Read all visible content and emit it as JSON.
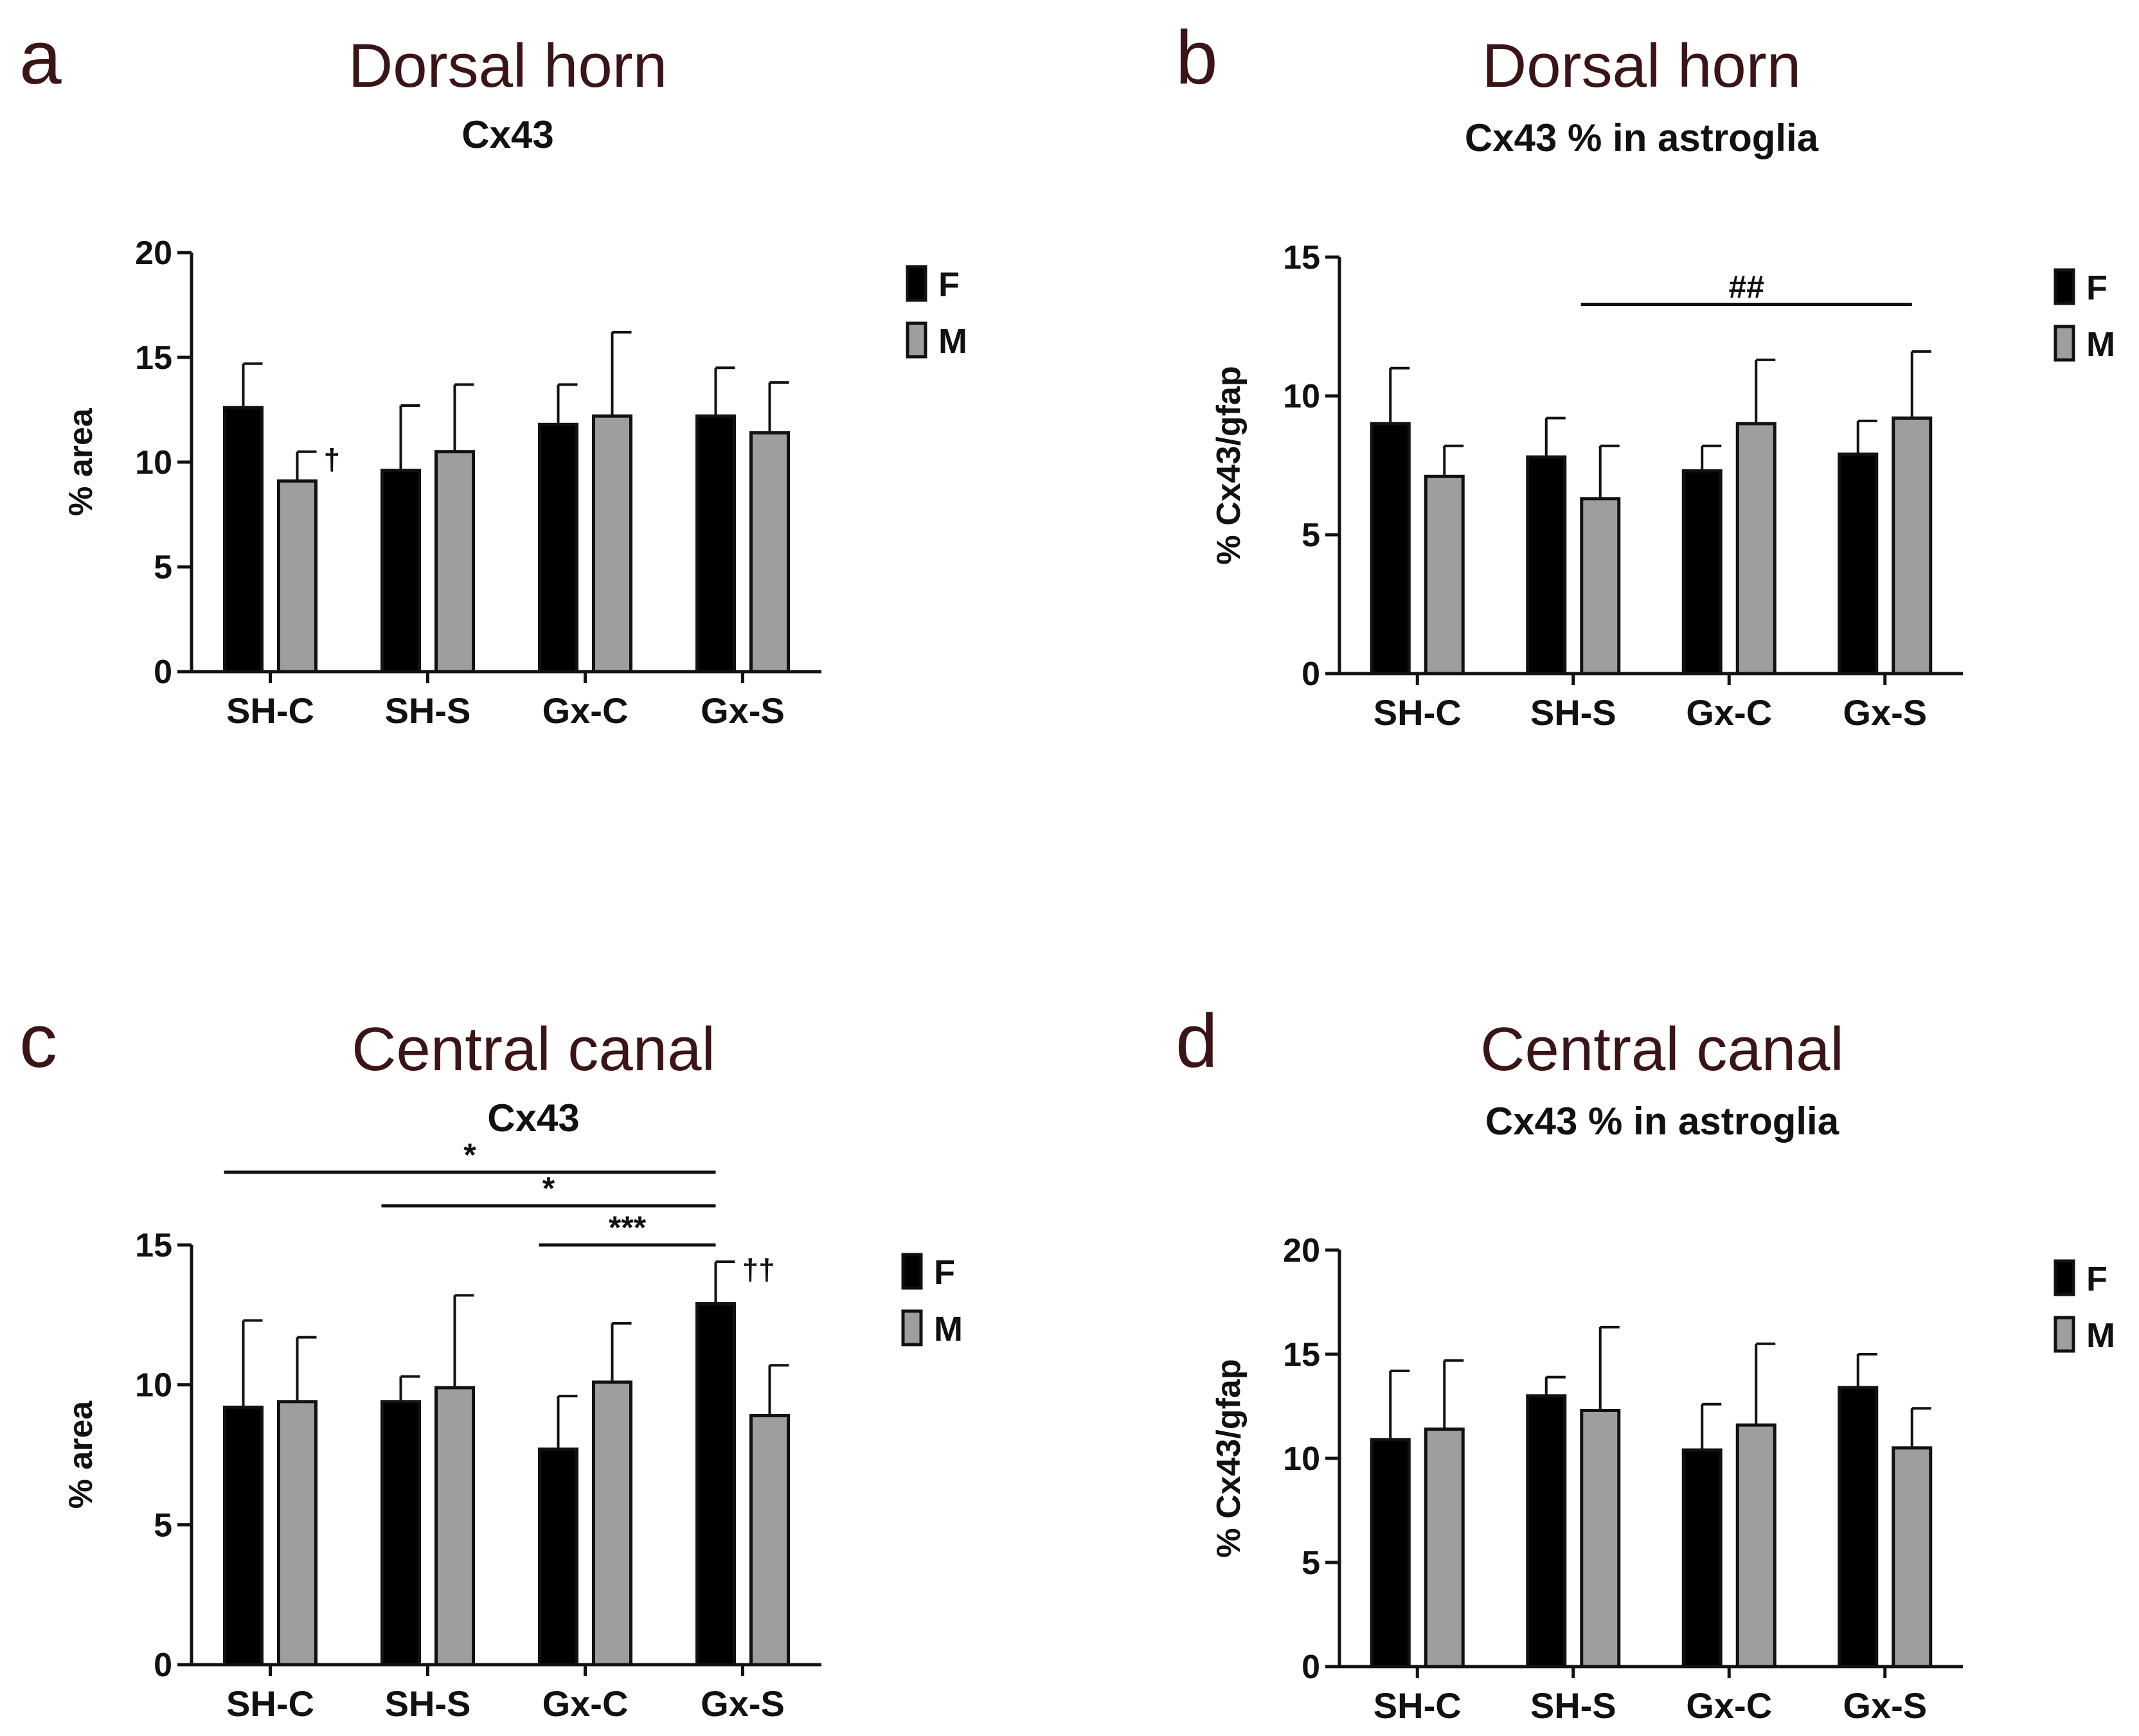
{
  "chart_data": [
    {
      "panel": "a",
      "type": "bar",
      "title": "Dorsal horn",
      "subtitle": "Cx43",
      "ylabel": "% area",
      "xlabel": "",
      "ylim": [
        0,
        20
      ],
      "yticks": [
        0,
        5,
        10,
        15,
        20
      ],
      "categories": [
        "SH-C",
        "SH-S",
        "Gx-C",
        "Gx-S"
      ],
      "series": [
        {
          "name": "F",
          "color": "#000000",
          "values": [
            12.6,
            9.6,
            11.8,
            12.2
          ],
          "errors": [
            2.1,
            3.1,
            1.9,
            2.3
          ]
        },
        {
          "name": "M",
          "color": "#9e9e9e",
          "values": [
            9.1,
            10.5,
            12.2,
            11.4
          ],
          "errors": [
            1.4,
            3.2,
            4.0,
            2.4
          ]
        }
      ],
      "marks": [
        {
          "series": 1,
          "category": 0,
          "text": "†"
        }
      ],
      "significance": []
    },
    {
      "panel": "b",
      "type": "bar",
      "title": "Dorsal horn",
      "subtitle": "Cx43 % in astroglia",
      "ylabel": "% Cx43/gfap",
      "xlabel": "",
      "ylim": [
        0,
        15
      ],
      "yticks": [
        0,
        5,
        10,
        15
      ],
      "categories": [
        "SH-C",
        "SH-S",
        "Gx-C",
        "Gx-S"
      ],
      "series": [
        {
          "name": "F",
          "color": "#000000",
          "values": [
            9.0,
            7.8,
            7.3,
            7.9
          ],
          "errors": [
            2.0,
            1.4,
            0.9,
            1.2
          ]
        },
        {
          "name": "M",
          "color": "#9e9e9e",
          "values": [
            7.1,
            6.3,
            9.0,
            9.2
          ],
          "errors": [
            1.1,
            1.9,
            2.3,
            2.4
          ]
        }
      ],
      "marks": [],
      "significance": [
        {
          "from": [
            1,
            1
          ],
          "to": [
            3,
            1
          ],
          "y": 13.3,
          "label": "##"
        }
      ]
    },
    {
      "panel": "c",
      "type": "bar",
      "title": "Central canal",
      "subtitle": "Cx43",
      "ylabel": "% area",
      "xlabel": "",
      "ylim": [
        0,
        15
      ],
      "yticks": [
        0,
        5,
        10,
        15
      ],
      "categories": [
        "SH-C",
        "SH-S",
        "Gx-C",
        "Gx-S"
      ],
      "series": [
        {
          "name": "F",
          "color": "#000000",
          "values": [
            9.2,
            9.4,
            7.7,
            12.9
          ],
          "errors": [
            3.1,
            0.9,
            1.9,
            1.5
          ]
        },
        {
          "name": "M",
          "color": "#9e9e9e",
          "values": [
            9.4,
            9.9,
            10.1,
            8.9
          ],
          "errors": [
            2.3,
            3.3,
            2.1,
            1.8
          ]
        }
      ],
      "marks": [
        {
          "series": 0,
          "category": 3,
          "text": "††"
        }
      ],
      "significance": [
        {
          "from": [
            0,
            0
          ],
          "to": [
            3,
            0
          ],
          "y": 17.6,
          "label": "*"
        },
        {
          "from": [
            1,
            0
          ],
          "to": [
            3,
            0
          ],
          "y": 16.4,
          "label": "*"
        },
        {
          "from": [
            2,
            0
          ],
          "to": [
            3,
            0
          ],
          "y": 15.0,
          "label": "***"
        }
      ]
    },
    {
      "panel": "d",
      "type": "bar",
      "title": "Central canal",
      "subtitle": "Cx43 % in astroglia",
      "ylabel": "% Cx43/gfap",
      "xlabel": "",
      "ylim": [
        0,
        20
      ],
      "yticks": [
        0,
        5,
        10,
        15,
        20
      ],
      "categories": [
        "SH-C",
        "SH-S",
        "Gx-C",
        "Gx-S"
      ],
      "series": [
        {
          "name": "F",
          "color": "#000000",
          "values": [
            10.9,
            13.0,
            10.4,
            13.4
          ],
          "errors": [
            3.3,
            0.9,
            2.2,
            1.6
          ]
        },
        {
          "name": "M",
          "color": "#9e9e9e",
          "values": [
            11.4,
            12.3,
            11.6,
            10.5
          ],
          "errors": [
            3.3,
            4.0,
            3.9,
            1.9
          ]
        }
      ],
      "marks": [],
      "significance": []
    }
  ]
}
